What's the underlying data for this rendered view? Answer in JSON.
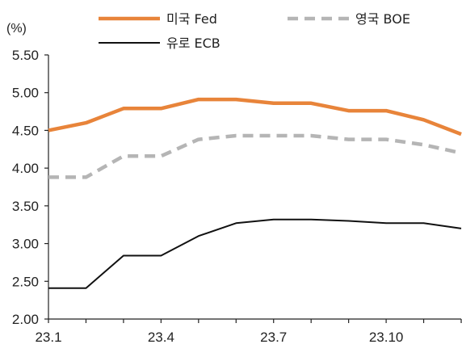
{
  "chart_data": {
    "type": "line",
    "unit_label": "(%)",
    "x": [
      "23.1",
      "23.2",
      "23.3",
      "23.4",
      "23.5",
      "23.6",
      "23.7",
      "23.8",
      "23.9",
      "23.10",
      "23.11",
      "23.12"
    ],
    "x_tick_labels": [
      "23.1",
      "23.4",
      "23.7",
      "23.10"
    ],
    "y_tick_labels": [
      "5.50",
      "5.00",
      "4.50",
      "4.00",
      "3.50",
      "3.00",
      "2.50",
      "2.00"
    ],
    "ylim": [
      2.0,
      5.5
    ],
    "grid": false,
    "legend_position": "top",
    "series": [
      {
        "name": "미국 Fed",
        "color": "#E8843A",
        "style": "solid-thick",
        "values": [
          4.5,
          4.6,
          4.79,
          4.79,
          4.91,
          4.91,
          4.86,
          4.86,
          4.76,
          4.76,
          4.64,
          4.45
        ]
      },
      {
        "name": "영국 BOE",
        "color": "#B5B5B5",
        "style": "dashed",
        "values": [
          3.88,
          3.88,
          4.16,
          4.16,
          4.38,
          4.43,
          4.43,
          4.43,
          4.38,
          4.38,
          4.31,
          4.2
        ]
      },
      {
        "name": "유로 ECB",
        "color": "#111111",
        "style": "solid-thin",
        "values": [
          2.41,
          2.41,
          2.84,
          2.84,
          3.1,
          3.27,
          3.32,
          3.32,
          3.3,
          3.27,
          3.27,
          3.2
        ]
      }
    ]
  }
}
